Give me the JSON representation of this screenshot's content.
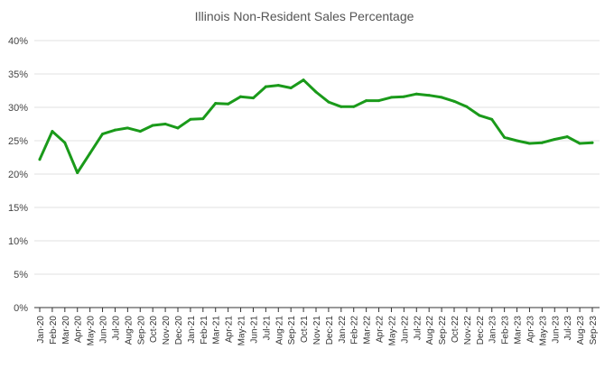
{
  "chart_data": {
    "type": "line",
    "title": "Illinois Non-Resident Sales Percentage",
    "xlabel": "",
    "ylabel": "",
    "ylim": [
      0,
      40
    ],
    "y_ticks": [
      "0%",
      "5%",
      "10%",
      "15%",
      "20%",
      "25%",
      "30%",
      "35%",
      "40%"
    ],
    "grid": true,
    "legend": "none",
    "color": "#1a9a1a",
    "categories": [
      "Jan-20",
      "Feb-20",
      "Mar-20",
      "Apr-20",
      "May-20",
      "Jun-20",
      "Jul-20",
      "Aug-20",
      "Sep-20",
      "Oct-20",
      "Nov-20",
      "Dec-20",
      "Jan-21",
      "Feb-21",
      "Mar-21",
      "Apr-21",
      "May-21",
      "Jun-21",
      "Jul-21",
      "Aug-21",
      "Sep-21",
      "Oct-21",
      "Nov-21",
      "Dec-21",
      "Jan-22",
      "Feb-22",
      "Mar-22",
      "Apr-22",
      "May-22",
      "Jun-22",
      "Jul-22",
      "Aug-22",
      "Sep-22",
      "Oct-22",
      "Nov-22",
      "Dec-22",
      "Jan-23",
      "Feb-23",
      "Mar-23",
      "Apr-23",
      "May-23",
      "Jun-23",
      "Jul-23",
      "Aug-23",
      "Sep-23"
    ],
    "series": [
      {
        "values": [
          22.2,
          26.4,
          24.7,
          20.2,
          23.1,
          26.0,
          26.6,
          26.9,
          26.4,
          27.3,
          27.5,
          26.9,
          28.2,
          28.3,
          30.6,
          30.5,
          31.6,
          31.4,
          33.1,
          33.3,
          32.9,
          34.1,
          32.3,
          30.8,
          30.1,
          30.1,
          31.0,
          31.0,
          31.5,
          31.6,
          32.0,
          31.8,
          31.5,
          30.9,
          30.1,
          28.8,
          28.2,
          25.5,
          25.0,
          24.6,
          24.7,
          25.2,
          25.6,
          24.6,
          24.7
        ]
      }
    ]
  }
}
